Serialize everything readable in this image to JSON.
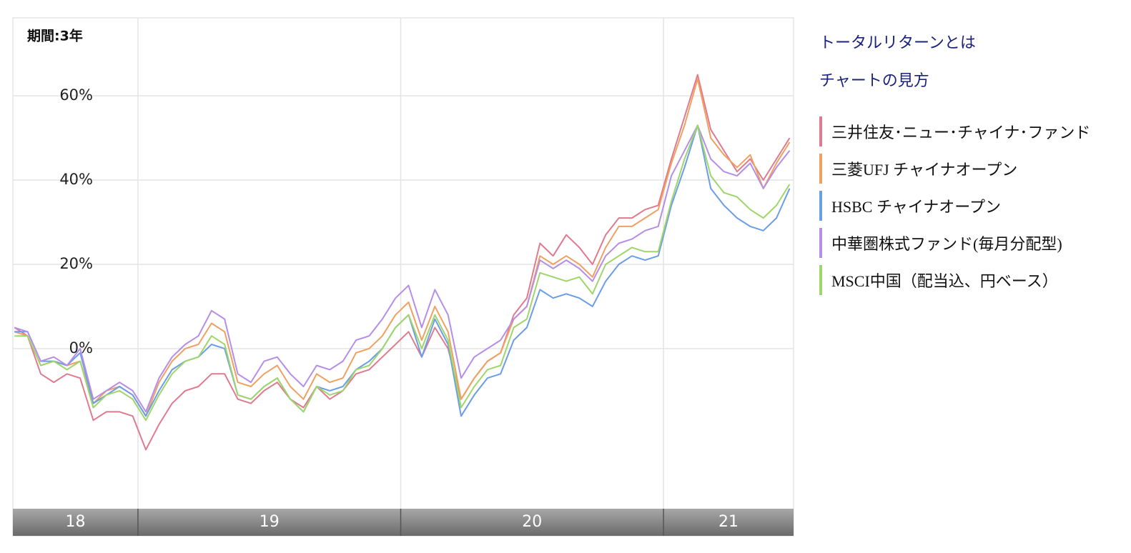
{
  "chart_data": {
    "type": "line",
    "period_label": "期間:3年",
    "links": [
      "トータルリターンとは",
      "チャートの見方"
    ],
    "x": [
      18.53,
      18.58,
      18.63,
      18.68,
      18.73,
      18.78,
      18.83,
      18.88,
      18.93,
      18.98,
      19.03,
      19.08,
      19.13,
      19.18,
      19.23,
      19.28,
      19.33,
      19.38,
      19.43,
      19.48,
      19.53,
      19.58,
      19.63,
      19.68,
      19.73,
      19.78,
      19.83,
      19.88,
      19.93,
      19.98,
      20.03,
      20.08,
      20.13,
      20.18,
      20.23,
      20.28,
      20.33,
      20.38,
      20.43,
      20.48,
      20.53,
      20.58,
      20.63,
      20.68,
      20.73,
      20.78,
      20.83,
      20.88,
      20.93,
      20.98,
      21.03,
      21.08,
      21.13,
      21.18,
      21.23,
      21.28,
      21.33,
      21.38,
      21.43,
      21.48
    ],
    "xlim": [
      18.524,
      21.495
    ],
    "xbands": [
      18,
      19,
      20,
      21
    ],
    "ylim": [
      -38,
      78.5
    ],
    "yticks": [
      {
        "value": 0,
        "label": "0%"
      },
      {
        "value": 20,
        "label": "20%"
      },
      {
        "value": 40,
        "label": "40%"
      },
      {
        "value": 60,
        "label": "60%"
      }
    ],
    "grid": true,
    "series": [
      {
        "name": "三井住友･ニュー･チャイナ･ファンド",
        "color": "#e07a8f",
        "values": [
          5,
          3,
          -6,
          -8,
          -6,
          -7,
          -17,
          -15,
          -15,
          -16,
          -24,
          -18,
          -13,
          -10,
          -9,
          -6,
          -6,
          -12,
          -13,
          -10,
          -8,
          -12,
          -14,
          -9,
          -12,
          -10,
          -6,
          -5,
          -2,
          1,
          4,
          -2,
          5,
          0,
          -12,
          -7,
          -3,
          -1,
          8,
          12,
          25,
          22,
          27,
          24,
          20,
          27,
          31,
          31,
          33,
          34,
          45,
          55,
          65,
          52,
          47,
          42,
          45,
          40,
          45,
          50
        ]
      },
      {
        "name": "三菱UFJ チャイナオープン",
        "color": "#f0a060",
        "values": [
          4,
          3,
          -4,
          -3,
          -4,
          -3,
          -13,
          -10,
          -9,
          -11,
          -16,
          -8,
          -3,
          0,
          1,
          6,
          4,
          -8,
          -9,
          -6,
          -4,
          -9,
          -12,
          -6,
          -8,
          -7,
          -1,
          0,
          3,
          8,
          11,
          2,
          10,
          4,
          -12,
          -7,
          -3,
          -1,
          7,
          10,
          22,
          20,
          22,
          20,
          17,
          24,
          29,
          29,
          31,
          33,
          44,
          53,
          64,
          50,
          46,
          43,
          46,
          38,
          44,
          49
        ]
      },
      {
        "name": "HSBC チャイナオープン",
        "color": "#6b9de8",
        "values": [
          4,
          4,
          -3,
          -3,
          -4,
          -1,
          -13,
          -11,
          -9,
          -11,
          -16,
          -10,
          -5,
          -3,
          -2,
          1,
          0,
          -11,
          -12,
          -9,
          -7,
          -12,
          -15,
          -9,
          -10,
          -9,
          -5,
          -3,
          0,
          5,
          8,
          -2,
          7,
          1,
          -16,
          -11,
          -7,
          -6,
          2,
          5,
          14,
          12,
          13,
          12,
          10,
          16,
          20,
          22,
          21,
          22,
          34,
          43,
          53,
          38,
          34,
          31,
          29,
          28,
          31,
          38
        ]
      },
      {
        "name": "中華圏株式ファンド(毎月分配型)",
        "color": "#b58ee8",
        "values": [
          5,
          4,
          -3,
          -2,
          -4,
          0,
          -12,
          -10,
          -8,
          -10,
          -15,
          -7,
          -2,
          1,
          3,
          9,
          7,
          -6,
          -8,
          -3,
          -2,
          -6,
          -9,
          -4,
          -5,
          -3,
          2,
          3,
          7,
          12,
          15,
          5,
          14,
          8,
          -7,
          -2,
          0,
          2,
          7,
          10,
          21,
          19,
          21,
          19,
          16,
          22,
          25,
          26,
          28,
          29,
          41,
          47,
          53,
          45,
          42,
          41,
          44,
          38,
          43,
          47
        ]
      },
      {
        "name": "MSCI中国（配当込、円ベース）",
        "color": "#9ed66a",
        "values": [
          3,
          3,
          -4,
          -3,
          -5,
          -3,
          -14,
          -11,
          -10,
          -12,
          -17,
          -11,
          -6,
          -3,
          -2,
          3,
          1,
          -11,
          -12,
          -9,
          -7,
          -12,
          -15,
          -9,
          -11,
          -10,
          -5,
          -4,
          0,
          5,
          8,
          0,
          8,
          2,
          -14,
          -9,
          -5,
          -4,
          5,
          7,
          18,
          17,
          16,
          17,
          13,
          20,
          22,
          24,
          23,
          23,
          35,
          45,
          53,
          41,
          37,
          36,
          33,
          31,
          34,
          39
        ]
      }
    ]
  }
}
